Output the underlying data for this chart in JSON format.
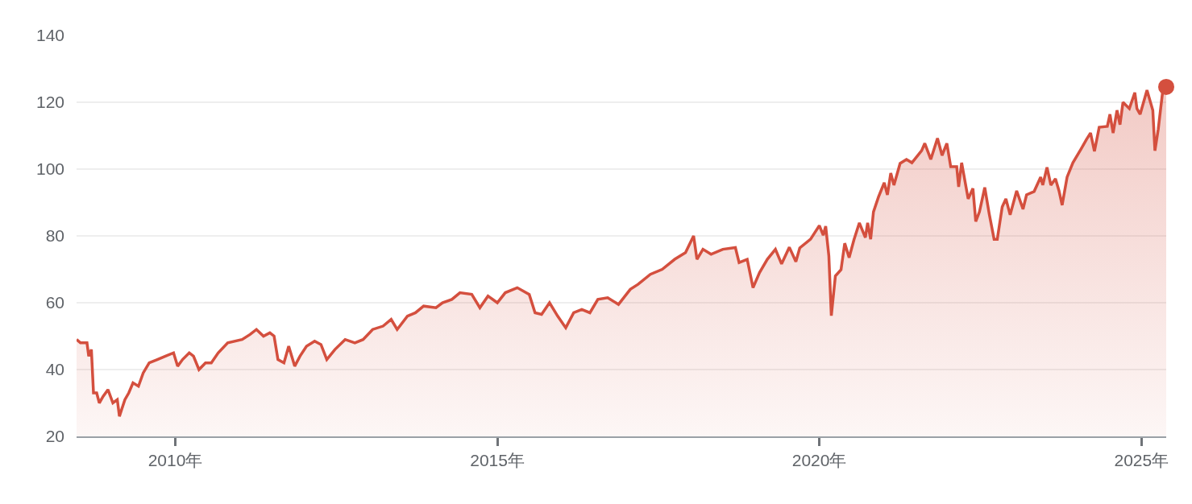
{
  "chart_data": {
    "type": "area",
    "xlim": [
      "2008-06-20",
      "2025-05-21"
    ],
    "xticks": [
      {
        "value": "2010-01-01",
        "label": "2010年"
      },
      {
        "value": "2015-01-01",
        "label": "2015年"
      },
      {
        "value": "2020-01-01",
        "label": "2020年"
      },
      {
        "value": "2025-01-01",
        "label": "2025年"
      }
    ],
    "ylim": [
      20,
      140
    ],
    "yticks": [
      20,
      40,
      60,
      80,
      100,
      120,
      140
    ],
    "grid": "y",
    "series": [
      {
        "color": "#d44f3e",
        "marker": "none",
        "line_style": "solid",
        "x": [
          "2008-06-20",
          "2008-07-12",
          "2008-08-18",
          "2008-08-28",
          "2008-09-12",
          "2008-09-24",
          "2008-10-12",
          "2008-10-27",
          "2008-11-18",
          "2008-12-15",
          "2009-01-12",
          "2009-02-06",
          "2009-02-18",
          "2009-03-21",
          "2009-04-12",
          "2009-05-06",
          "2009-06-06",
          "2009-07-03",
          "2009-08-06",
          "2009-09-21",
          "2009-11-06",
          "2009-12-22",
          "2010-01-14",
          "2010-02-11",
          "2010-03-21",
          "2010-04-14",
          "2010-05-15",
          "2010-06-21",
          "2010-07-24",
          "2010-09-01",
          "2010-10-25",
          "2011-01-15",
          "2011-03-01",
          "2011-04-06",
          "2011-05-16",
          "2011-06-21",
          "2011-07-15",
          "2011-08-06",
          "2011-09-09",
          "2011-10-06",
          "2011-11-09",
          "2011-12-09",
          "2012-01-15",
          "2012-03-01",
          "2012-04-06",
          "2012-05-09",
          "2012-06-24",
          "2012-08-21",
          "2012-10-15",
          "2012-12-01",
          "2013-01-24",
          "2013-03-24",
          "2013-05-09",
          "2013-06-12",
          "2013-08-09",
          "2013-09-24",
          "2013-11-09",
          "2014-01-18",
          "2014-02-24",
          "2014-04-18",
          "2014-06-03",
          "2014-08-09",
          "2014-09-24",
          "2014-11-09",
          "2015-01-01",
          "2015-02-15",
          "2015-04-24",
          "2015-07-01",
          "2015-08-03",
          "2015-09-09",
          "2015-10-24",
          "2015-12-09",
          "2016-01-24",
          "2016-03-09",
          "2016-04-24",
          "2016-06-09",
          "2016-07-24",
          "2016-09-18",
          "2016-11-18",
          "2017-01-24",
          "2017-03-09",
          "2017-05-18",
          "2017-07-24",
          "2017-10-03",
          "2017-12-03",
          "2018-01-18",
          "2018-02-06",
          "2018-03-12",
          "2018-04-27",
          "2018-07-03",
          "2018-09-12",
          "2018-10-03",
          "2018-11-18",
          "2018-12-21",
          "2019-01-27",
          "2019-03-12",
          "2019-04-27",
          "2019-06-01",
          "2019-07-15",
          "2019-08-21",
          "2019-09-12",
          "2019-11-12",
          "2020-01-01",
          "2020-01-23",
          "2020-02-06",
          "2020-02-24",
          "2020-03-09",
          "2020-04-01",
          "2020-05-03",
          "2020-05-24",
          "2020-06-18",
          "2020-07-15",
          "2020-08-15",
          "2020-09-18",
          "2020-10-01",
          "2020-10-18",
          "2020-11-03",
          "2020-12-01",
          "2021-01-03",
          "2021-01-21",
          "2021-02-09",
          "2021-02-27",
          "2021-04-03",
          "2021-05-09",
          "2021-06-09",
          "2021-08-03",
          "2021-08-21",
          "2021-09-24",
          "2021-11-01",
          "2021-11-27",
          "2021-12-24",
          "2022-01-15",
          "2022-02-18",
          "2022-03-01",
          "2022-03-18",
          "2022-04-24",
          "2022-05-21",
          "2022-06-06",
          "2022-06-27",
          "2022-07-27",
          "2022-08-21",
          "2022-09-18",
          "2022-10-06",
          "2022-11-03",
          "2022-11-24",
          "2022-12-18",
          "2023-01-24",
          "2023-03-01",
          "2023-03-21",
          "2023-05-03",
          "2023-06-09",
          "2023-06-21",
          "2023-07-15",
          "2023-08-06",
          "2023-09-01",
          "2023-09-21",
          "2023-10-09",
          "2023-11-06",
          "2023-12-09",
          "2024-01-24",
          "2024-02-24",
          "2024-03-18",
          "2024-04-09",
          "2024-05-06",
          "2024-06-21",
          "2024-07-06",
          "2024-07-24",
          "2024-08-15",
          "2024-09-01",
          "2024-09-18",
          "2024-10-24",
          "2024-11-24",
          "2024-12-06",
          "2024-12-24",
          "2025-02-01",
          "2025-03-06",
          "2025-03-18",
          "2025-04-06",
          "2025-04-21",
          "2025-05-03",
          "2025-05-21"
        ],
        "values": [
          49,
          48,
          48,
          44,
          46,
          33,
          33,
          30,
          32,
          34,
          30,
          31,
          26,
          31,
          33,
          36,
          35,
          39,
          42,
          43,
          44,
          45,
          41,
          43,
          45,
          44,
          40,
          42,
          42,
          45,
          48,
          49,
          50.5,
          52,
          50,
          51,
          50,
          43,
          42,
          47,
          41,
          44,
          47,
          48.5,
          47.5,
          43,
          46,
          49,
          48,
          49,
          52,
          53,
          55,
          52,
          56,
          57,
          59,
          58.5,
          60,
          61,
          63,
          62.5,
          58.5,
          62,
          60,
          63,
          64.5,
          62.5,
          57,
          56.5,
          60,
          56,
          52.5,
          57,
          58,
          57,
          61,
          61.5,
          59.5,
          64,
          65.5,
          68.5,
          70,
          73,
          75,
          80,
          73,
          76,
          74.5,
          76,
          76.5,
          72,
          73,
          64.5,
          69,
          73,
          76,
          71.6,
          76.6,
          72.3,
          76.4,
          79,
          83.1,
          80.2,
          82.9,
          74,
          56.1,
          68,
          69.9,
          77.8,
          73.5,
          78.8,
          83.9,
          79.5,
          83.9,
          79,
          87.2,
          91.6,
          95.9,
          92.3,
          98.8,
          95.2,
          101.7,
          102.9,
          101.9,
          105.5,
          107.7,
          102.9,
          109.2,
          104.1,
          107.7,
          100.7,
          100.7,
          94.7,
          101.9,
          91.1,
          94.2,
          84.3,
          87.2,
          94.5,
          86.7,
          79,
          79,
          88.7,
          91.1,
          86.3,
          93.5,
          88,
          92.3,
          93.3,
          97.6,
          95.2,
          100.5,
          95.2,
          97.1,
          93.5,
          89.2,
          97.6,
          101.9,
          106,
          108.9,
          110.8,
          105.3,
          112.5,
          112.8,
          116.4,
          110.8,
          117.6,
          113.3,
          120,
          118.1,
          122.9,
          118.1,
          116.4,
          123.6,
          117.6,
          105.5,
          112,
          118.8,
          124.1,
          124.6
        ]
      },
      {
        "type": "scatter",
        "color": "#d44f3e",
        "marker": "circle",
        "x": [
          "2025-05-21"
        ],
        "values": [
          124.6
        ]
      }
    ]
  }
}
